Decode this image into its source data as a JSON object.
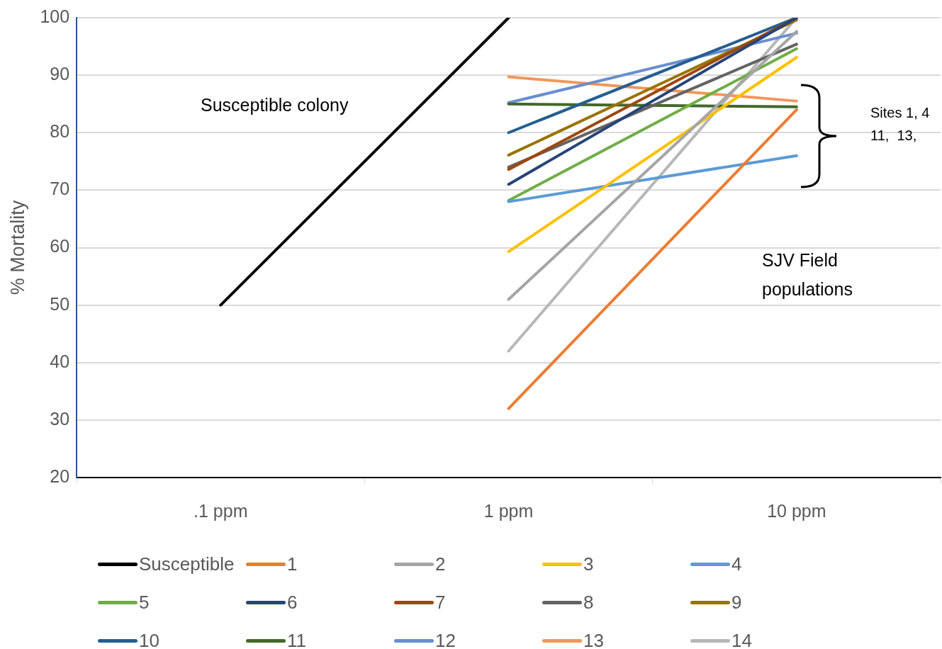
{
  "chart_data": {
    "type": "line",
    "ylabel": "% Mortality",
    "categories": [
      ".1 ppm",
      "1 ppm",
      "10 ppm"
    ],
    "ylim": [
      20,
      100
    ],
    "yticks": [
      20,
      30,
      40,
      50,
      60,
      70,
      80,
      90,
      100
    ],
    "grid": "y",
    "legend": "bottom",
    "marker": "none",
    "line_style": "solid",
    "annotations": [
      "Susceptible colony",
      "SJV Field populations",
      "Sites 1, 4\n11,  13,"
    ],
    "series": [
      {
        "name": "Susceptible",
        "color": "#000000",
        "values": [
          50,
          100,
          null
        ]
      },
      {
        "name": "1",
        "color": "#ed7d31",
        "values": [
          null,
          32,
          84
        ]
      },
      {
        "name": "2",
        "color": "#a5a5a5",
        "values": [
          null,
          51,
          97.6
        ]
      },
      {
        "name": "3",
        "color": "#ffc000",
        "values": [
          null,
          59.3,
          93.1
        ]
      },
      {
        "name": "4",
        "color": "#5b9bd5",
        "values": [
          null,
          68,
          76
        ]
      },
      {
        "name": "5",
        "color": "#70ad47",
        "values": [
          null,
          68.2,
          94.6
        ]
      },
      {
        "name": "6",
        "color": "#264478",
        "values": [
          null,
          71,
          100
        ]
      },
      {
        "name": "7",
        "color": "#9e480e",
        "values": [
          null,
          73.6,
          100
        ]
      },
      {
        "name": "8",
        "color": "#636363",
        "values": [
          null,
          74,
          95.4
        ]
      },
      {
        "name": "9",
        "color": "#997300",
        "values": [
          null,
          76.1,
          99.6
        ]
      },
      {
        "name": "10",
        "color": "#255e91",
        "values": [
          null,
          80,
          100
        ]
      },
      {
        "name": "11",
        "color": "#43682b",
        "values": [
          null,
          85,
          84.5
        ]
      },
      {
        "name": "12",
        "color": "#698ed0",
        "values": [
          null,
          85.2,
          97.3
        ]
      },
      {
        "name": "13",
        "color": "#f1975a",
        "values": [
          null,
          89.7,
          85.5
        ]
      },
      {
        "name": "14",
        "color": "#b7b7b7",
        "values": [
          null,
          42,
          100
        ]
      }
    ]
  }
}
